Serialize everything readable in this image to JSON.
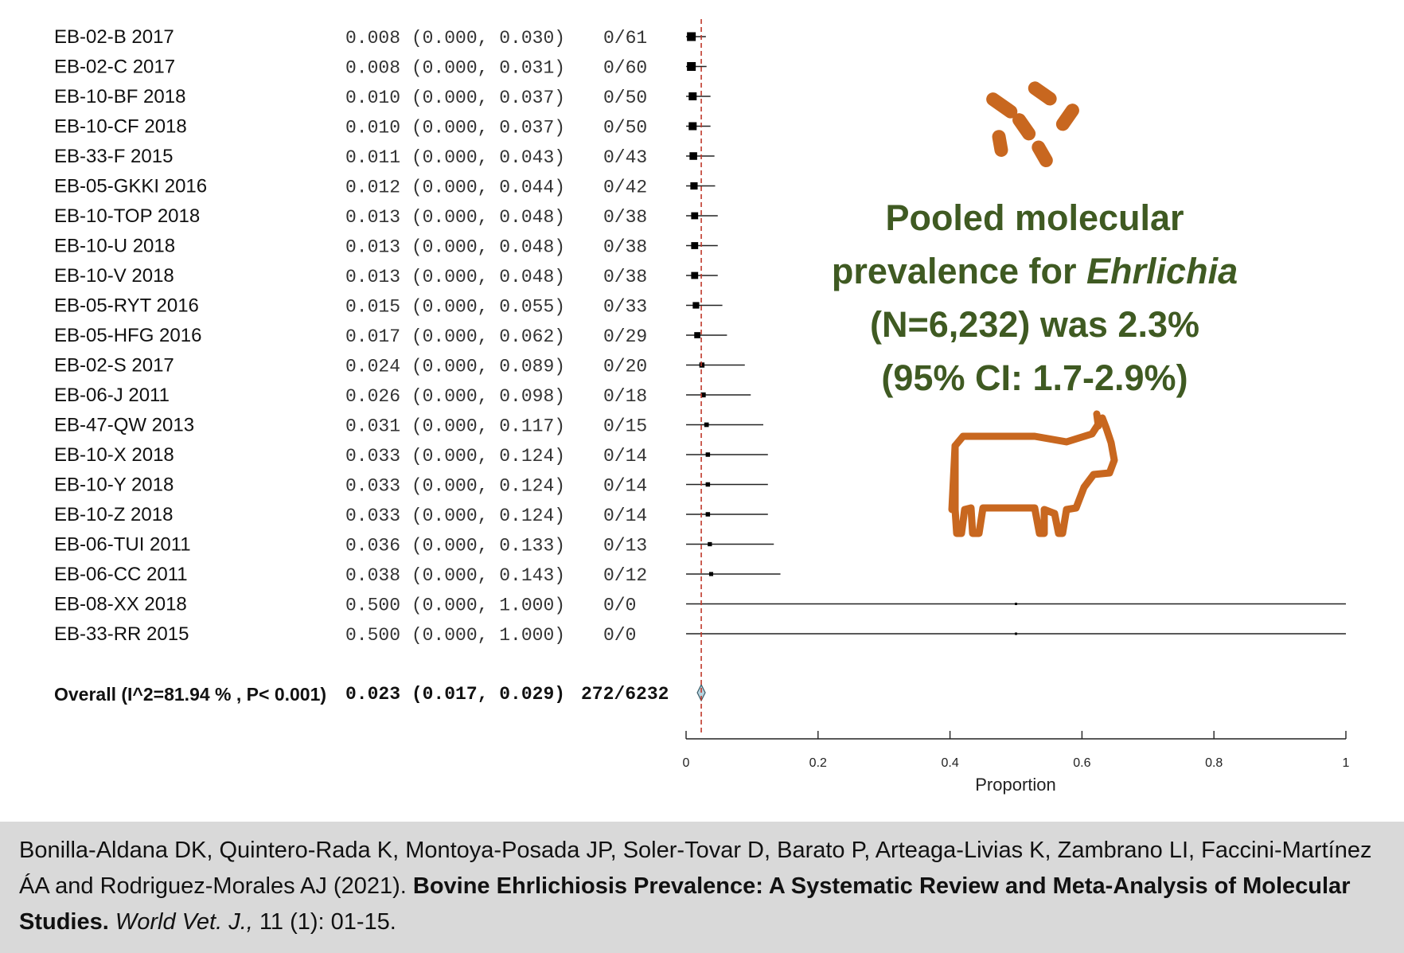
{
  "chart_data": {
    "type": "forest",
    "studies": [
      {
        "label": "EB-02-B 2017",
        "est": 0.008,
        "lo": 0.0,
        "hi": 0.03,
        "ci_text": "0.008 (0.000, 0.030)",
        "events": "0/61"
      },
      {
        "label": "EB-02-C 2017",
        "est": 0.008,
        "lo": 0.0,
        "hi": 0.031,
        "ci_text": "0.008 (0.000, 0.031)",
        "events": "0/60"
      },
      {
        "label": "EB-10-BF 2018",
        "est": 0.01,
        "lo": 0.0,
        "hi": 0.037,
        "ci_text": "0.010 (0.000, 0.037)",
        "events": "0/50"
      },
      {
        "label": "EB-10-CF 2018",
        "est": 0.01,
        "lo": 0.0,
        "hi": 0.037,
        "ci_text": "0.010 (0.000, 0.037)",
        "events": "0/50"
      },
      {
        "label": "EB-33-F 2015",
        "est": 0.011,
        "lo": 0.0,
        "hi": 0.043,
        "ci_text": "0.011 (0.000, 0.043)",
        "events": "0/43"
      },
      {
        "label": "EB-05-GKKI 2016",
        "est": 0.012,
        "lo": 0.0,
        "hi": 0.044,
        "ci_text": "0.012 (0.000, 0.044)",
        "events": "0/42"
      },
      {
        "label": "EB-10-TOP 2018",
        "est": 0.013,
        "lo": 0.0,
        "hi": 0.048,
        "ci_text": "0.013 (0.000, 0.048)",
        "events": "0/38"
      },
      {
        "label": "EB-10-U 2018",
        "est": 0.013,
        "lo": 0.0,
        "hi": 0.048,
        "ci_text": "0.013 (0.000, 0.048)",
        "events": "0/38"
      },
      {
        "label": "EB-10-V 2018",
        "est": 0.013,
        "lo": 0.0,
        "hi": 0.048,
        "ci_text": "0.013 (0.000, 0.048)",
        "events": "0/38"
      },
      {
        "label": "EB-05-RYT 2016",
        "est": 0.015,
        "lo": 0.0,
        "hi": 0.055,
        "ci_text": "0.015 (0.000, 0.055)",
        "events": "0/33"
      },
      {
        "label": "EB-05-HFG 2016",
        "est": 0.017,
        "lo": 0.0,
        "hi": 0.062,
        "ci_text": "0.017 (0.000, 0.062)",
        "events": "0/29"
      },
      {
        "label": "EB-02-S 2017",
        "est": 0.024,
        "lo": 0.0,
        "hi": 0.089,
        "ci_text": "0.024 (0.000, 0.089)",
        "events": "0/20"
      },
      {
        "label": "EB-06-J 2011",
        "est": 0.026,
        "lo": 0.0,
        "hi": 0.098,
        "ci_text": "0.026 (0.000, 0.098)",
        "events": "0/18"
      },
      {
        "label": "EB-47-QW 2013",
        "est": 0.031,
        "lo": 0.0,
        "hi": 0.117,
        "ci_text": "0.031 (0.000, 0.117)",
        "events": "0/15"
      },
      {
        "label": "EB-10-X 2018",
        "est": 0.033,
        "lo": 0.0,
        "hi": 0.124,
        "ci_text": "0.033 (0.000, 0.124)",
        "events": "0/14"
      },
      {
        "label": "EB-10-Y 2018",
        "est": 0.033,
        "lo": 0.0,
        "hi": 0.124,
        "ci_text": "0.033 (0.000, 0.124)",
        "events": "0/14"
      },
      {
        "label": "EB-10-Z 2018",
        "est": 0.033,
        "lo": 0.0,
        "hi": 0.124,
        "ci_text": "0.033 (0.000, 0.124)",
        "events": "0/14"
      },
      {
        "label": "EB-06-TUI 2011",
        "est": 0.036,
        "lo": 0.0,
        "hi": 0.133,
        "ci_text": "0.036 (0.000, 0.133)",
        "events": "0/13"
      },
      {
        "label": "EB-06-CC 2011",
        "est": 0.038,
        "lo": 0.0,
        "hi": 0.143,
        "ci_text": "0.038 (0.000, 0.143)",
        "events": "0/12"
      },
      {
        "label": "EB-08-XX 2018",
        "est": 0.5,
        "lo": 0.0,
        "hi": 1.0,
        "ci_text": "0.500 (0.000, 1.000)",
        "events": "0/0"
      },
      {
        "label": "EB-33-RR 2015",
        "est": 0.5,
        "lo": 0.0,
        "hi": 1.0,
        "ci_text": "0.500 (0.000, 1.000)",
        "events": "0/0"
      }
    ],
    "overall": {
      "label": "Overall (I^2=81.94 % , P< 0.001)",
      "est": 0.023,
      "lo": 0.017,
      "hi": 0.029,
      "ci_text": "0.023 (0.017, 0.029)",
      "events": "272/6232"
    },
    "xlim": [
      0,
      1
    ],
    "xticks": [
      0,
      0.2,
      0.4,
      0.6,
      0.8,
      1
    ],
    "xtick_labels": [
      "0",
      "0.2",
      "0.4",
      "0.6",
      "0.8",
      "1"
    ],
    "xlabel": "Proportion",
    "reference_line": 0.023,
    "colors": {
      "reference_line": "#c0392b",
      "diamond": "#b8d4e0",
      "marks": "#000000"
    }
  },
  "headline": {
    "line1": "Pooled molecular",
    "line2_pre": "prevalence for ",
    "line2_em": "Ehrlichia",
    "line3": "(N=6,232) was 2.3%",
    "line4": "(95% CI: 1.7-2.9%)",
    "color": "#3f5a22"
  },
  "icons": {
    "bacteria": "bacteria-icon",
    "cow": "cow-icon",
    "color": "#c8671f"
  },
  "citation": {
    "authors": "Bonilla-Aldana DK, Quintero-Rada K, Montoya-Posada JP, Soler-Tovar D, Barato P, Arteaga-Livias K, Zambrano LI, Faccini-Martínez ÁA and Rodriguez-Morales AJ (2021). ",
    "title": "Bovine Ehrlichiosis Prevalence: A Systematic Review and Meta-Analysis of Molecular Studies.",
    "journal": "World Vet. J.,",
    "issue": " 11 (1): 01-15."
  }
}
